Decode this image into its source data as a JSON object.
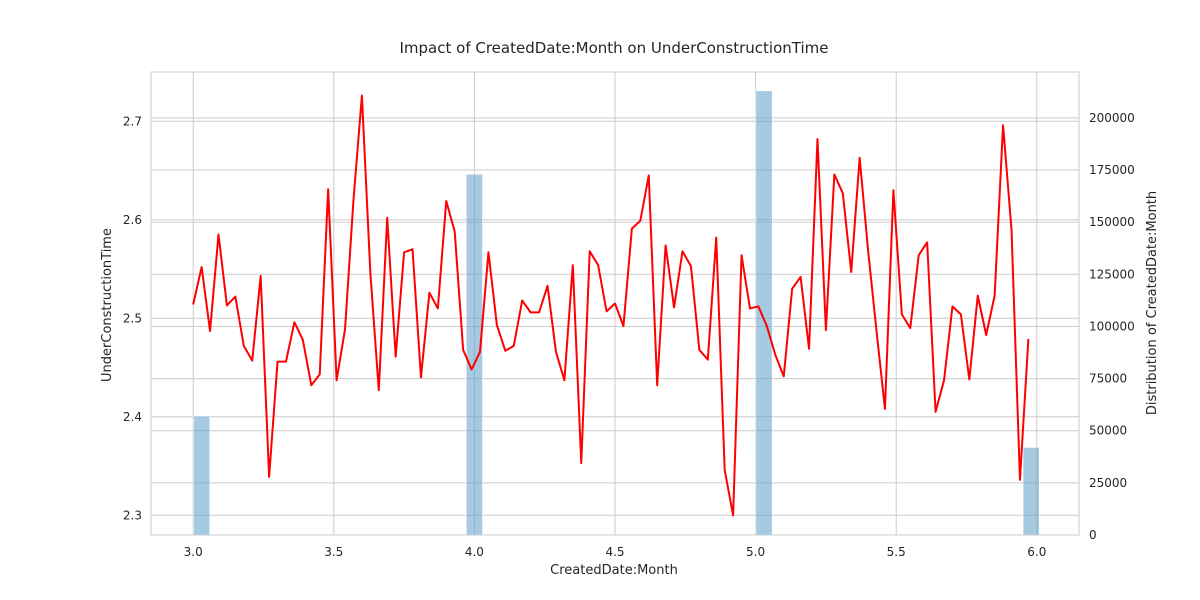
{
  "chart_data": {
    "type": "line",
    "title": "Impact of CreatedDate:Month on UnderConstructionTime",
    "xlabel": "CreatedDate:Month",
    "ylabel": "UnderConstructionTime",
    "y2label": "Distribution of CreatedDate:Month",
    "xlim": [
      2.85,
      6.15
    ],
    "ylim": [
      2.28,
      2.75
    ],
    "y2lim": [
      0,
      222000
    ],
    "grid": true,
    "x_ticks": [
      3.0,
      3.5,
      4.0,
      4.5,
      5.0,
      5.5,
      6.0
    ],
    "x_tick_labels": [
      "3.0",
      "3.5",
      "4.0",
      "4.5",
      "5.0",
      "5.5",
      "6.0"
    ],
    "y_ticks": [
      2.3,
      2.4,
      2.5,
      2.6,
      2.7
    ],
    "y_tick_labels": [
      "2.3",
      "2.4",
      "2.5",
      "2.6",
      "2.7"
    ],
    "y2_ticks": [
      0,
      25000,
      50000,
      75000,
      100000,
      125000,
      150000,
      175000,
      200000
    ],
    "y2_tick_labels": [
      "0",
      "25000",
      "50000",
      "75000",
      "100000",
      "125000",
      "150000",
      "175000",
      "200000"
    ],
    "series": [
      {
        "kind": "line",
        "color": "#ff0000",
        "x": [
          3.0,
          3.03,
          3.06,
          3.09,
          3.12,
          3.15,
          3.18,
          3.21,
          3.24,
          3.27,
          3.3,
          3.33,
          3.36,
          3.39,
          3.42,
          3.45,
          3.48,
          3.51,
          3.54,
          3.57,
          3.6,
          3.63,
          3.66,
          3.69,
          3.72,
          3.75,
          3.78,
          3.81,
          3.84,
          3.87,
          3.9,
          3.93,
          3.96,
          3.99,
          4.02,
          4.05,
          4.08,
          4.11,
          4.14,
          4.17,
          4.2,
          4.23,
          4.26,
          4.29,
          4.32,
          4.35,
          4.38,
          4.41,
          4.44,
          4.47,
          4.5,
          4.53,
          4.56,
          4.59,
          4.62,
          4.65,
          4.68,
          4.71,
          4.74,
          4.77,
          4.8,
          4.83,
          4.86,
          4.89,
          4.92,
          4.95,
          4.98,
          5.01,
          5.04,
          5.07,
          5.1,
          5.13,
          5.16,
          5.19,
          5.22,
          5.25,
          5.28,
          5.31,
          5.34,
          5.37,
          5.4,
          5.43,
          5.46,
          5.49,
          5.52,
          5.55,
          5.58,
          5.61,
          5.64,
          5.67,
          5.7,
          5.73,
          5.76,
          5.79,
          5.82,
          5.85,
          5.88,
          5.91,
          5.94,
          5.97
        ],
        "y": [
          2.514,
          2.552,
          2.487,
          2.585,
          2.513,
          2.522,
          2.472,
          2.457,
          2.543,
          2.339,
          2.456,
          2.456,
          2.496,
          2.478,
          2.432,
          2.443,
          2.631,
          2.437,
          2.489,
          2.62,
          2.726,
          2.546,
          2.427,
          2.602,
          2.461,
          2.567,
          2.57,
          2.44,
          2.526,
          2.51,
          2.619,
          2.588,
          2.468,
          2.448,
          2.466,
          2.567,
          2.493,
          2.467,
          2.472,
          2.518,
          2.506,
          2.506,
          2.533,
          2.466,
          2.437,
          2.554,
          2.353,
          2.568,
          2.554,
          2.507,
          2.515,
          2.492,
          2.591,
          2.599,
          2.645,
          2.432,
          2.574,
          2.511,
          2.568,
          2.553,
          2.468,
          2.458,
          2.582,
          2.346,
          2.3,
          2.564,
          2.51,
          2.512,
          2.492,
          2.463,
          2.441,
          2.53,
          2.542,
          2.469,
          2.682,
          2.488,
          2.646,
          2.627,
          2.547,
          2.663,
          2.569,
          2.487,
          2.408,
          2.63,
          2.504,
          2.49,
          2.564,
          2.577,
          2.405,
          2.437,
          2.512,
          2.504,
          2.438,
          2.523,
          2.483,
          2.523,
          2.696,
          2.59,
          2.336,
          2.479
        ]
      },
      {
        "kind": "hist",
        "color": "#5b9ec9",
        "bin_centers": [
          3.03,
          4.0,
          5.03,
          5.98
        ],
        "bin_width": 0.058,
        "counts": [
          57000,
          173000,
          213000,
          42000
        ]
      }
    ]
  }
}
